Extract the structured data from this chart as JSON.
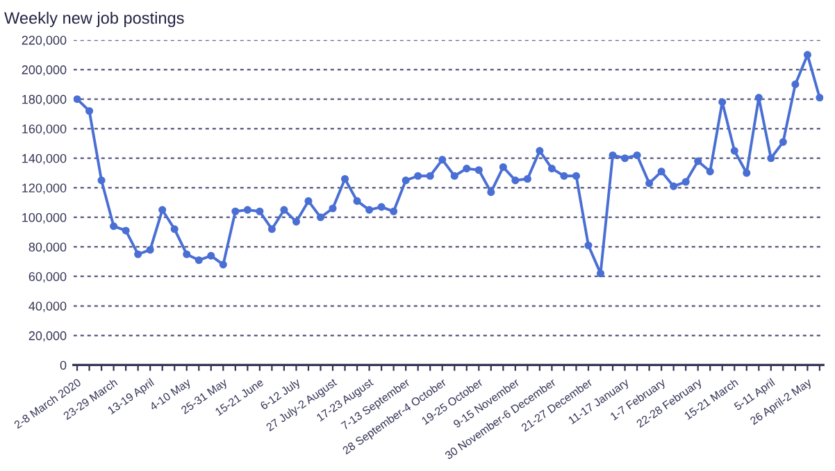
{
  "chart_data": {
    "type": "line",
    "title": "Weekly new job postings",
    "categories": [
      "2-8 March 2020",
      null,
      null,
      "23-29 March",
      null,
      null,
      "13-19 April",
      null,
      null,
      "4-10 May",
      null,
      null,
      "25-31 May",
      null,
      null,
      "15-21 June",
      null,
      null,
      "6-12 July",
      null,
      null,
      "27 July-2 August",
      null,
      null,
      "17-23 August",
      null,
      null,
      "7-13 September",
      null,
      null,
      "28 September-4 October",
      null,
      null,
      "19-25 October",
      null,
      null,
      "9-15 November",
      null,
      null,
      "30 November-6 December",
      null,
      null,
      "21-27 December",
      null,
      null,
      "11-17 January",
      null,
      null,
      "1-7 February",
      null,
      null,
      "22-28 February",
      null,
      null,
      "15-21 March",
      null,
      null,
      "5-11 April",
      null,
      null,
      "26 April-2 May",
      null
    ],
    "series": [
      {
        "color": "#4a6fd4",
        "values": [
          180000,
          172000,
          125000,
          94000,
          91000,
          75000,
          78000,
          105000,
          92000,
          75000,
          71000,
          74000,
          68000,
          104000,
          105000,
          104000,
          92000,
          105000,
          97000,
          111000,
          100000,
          106000,
          126000,
          111000,
          105000,
          107000,
          104000,
          125000,
          128000,
          128000,
          139000,
          128000,
          133000,
          132000,
          117000,
          134000,
          125000,
          126000,
          145000,
          133000,
          128000,
          128000,
          81000,
          62000,
          142000,
          140000,
          142000,
          123000,
          131000,
          121000,
          124000,
          138000,
          131000,
          178000,
          145000,
          130000,
          181000,
          140000,
          151000,
          190000,
          210000,
          181000
        ]
      }
    ],
    "ylim": [
      0,
      220000
    ],
    "yticks": [
      {
        "value": 0,
        "label": "0"
      },
      {
        "value": 20000,
        "label": "20,000"
      },
      {
        "value": 40000,
        "label": "40,000"
      },
      {
        "value": 60000,
        "label": "60,000"
      },
      {
        "value": 80000,
        "label": "80,000"
      },
      {
        "value": 100000,
        "label": "100,000"
      },
      {
        "value": 120000,
        "label": "120,000"
      },
      {
        "value": 140000,
        "label": "140,000"
      },
      {
        "value": 160000,
        "label": "160,000"
      },
      {
        "value": 180000,
        "label": "180,000"
      },
      {
        "value": 200000,
        "label": "200,000"
      },
      {
        "value": 220000,
        "label": "220,000"
      }
    ],
    "grid": "y",
    "marker": "circle",
    "line_style": "solid",
    "legend": false
  }
}
